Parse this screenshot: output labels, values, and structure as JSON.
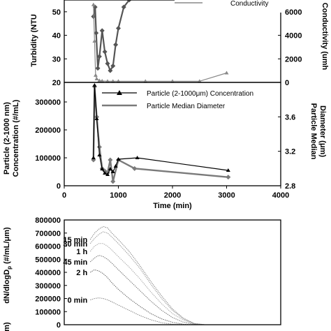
{
  "chart_data": [
    {
      "type": "line",
      "ylabel": "Turbidity (NTU",
      "y2label": "Conductivity (umh",
      "yticks": [
        "20",
        "30",
        "40",
        "50"
      ],
      "y2ticks": [
        "0",
        "2000",
        "4000",
        "6000"
      ],
      "ylim": [
        20,
        55
      ],
      "y2lim": [
        0,
        7000
      ],
      "xlim": [
        0,
        4000
      ],
      "grid": false,
      "legend_position": "top-right",
      "series": [
        {
          "name": "",
          "color": "#555555",
          "axis": "left",
          "marker": "diamond",
          "x": [
            540,
            570,
            590,
            620,
            650,
            700,
            750,
            800,
            850,
            900,
            950,
            1000,
            1100,
            1200,
            1350
          ],
          "y": [
            48,
            52,
            41,
            26,
            31,
            42,
            33,
            28,
            25,
            27,
            36,
            43,
            52,
            55,
            57
          ]
        },
        {
          "name": "Conductivity",
          "color": "#888888",
          "axis": "right",
          "marker": "triangle",
          "x": [
            540,
            560,
            580,
            600,
            650,
            700,
            800,
            900,
            1000,
            1500,
            2000,
            2500,
            3000
          ],
          "y": [
            6600,
            3500,
            600,
            300,
            150,
            120,
            100,
            100,
            100,
            100,
            100,
            100,
            800
          ]
        }
      ]
    },
    {
      "type": "line",
      "xlabel": "Time (min)",
      "ylabel": "Particle (2-1000 nm) Concentration (#/mL)",
      "y2label": "Particle Median Diameter (μm)",
      "xticks": [
        "0",
        "1000",
        "2000",
        "3000",
        "4000"
      ],
      "yticks": [
        "0",
        "100000",
        "200000",
        "300000"
      ],
      "y2ticks": [
        "2.8",
        "3.2",
        "3.6"
      ],
      "xlim": [
        0,
        4000
      ],
      "ylim": [
        0,
        370000
      ],
      "y2lim": [
        2.8,
        4.0
      ],
      "grid": false,
      "legend_position": "top-right",
      "series": [
        {
          "name": "Particle (2-1000μm) Concentration",
          "color": "#000000",
          "marker": "triangle",
          "axis": "left",
          "x": [
            540,
            560,
            600,
            650,
            700,
            750,
            800,
            850,
            900,
            950,
            1000,
            1350,
            3030
          ],
          "y": [
            100000,
            360000,
            240000,
            110000,
            60000,
            45000,
            40000,
            60000,
            50000,
            70000,
            95000,
            100000,
            55000
          ]
        },
        {
          "name": "Particle Median Diameter",
          "color": "#7a7a7a",
          "marker": "diamond",
          "axis": "right",
          "x": [
            540,
            560,
            600,
            650,
            700,
            750,
            800,
            850,
            900,
            1000,
            1300,
            3030
          ],
          "y": [
            3.1,
            3.95,
            3.6,
            3.25,
            3.0,
            2.97,
            2.95,
            3.1,
            2.85,
            3.1,
            3.0,
            2.9
          ]
        }
      ]
    },
    {
      "type": "line",
      "ylabel": "dN/dlogD",
      "ylabel_sub": "p",
      "ylabel_units": " (#/mL/μm)",
      "yticks": [
        "0",
        "100000",
        "200000",
        "300000",
        "400000",
        "500000",
        "600000",
        "700000",
        "800000"
      ],
      "ylim": [
        0,
        800000
      ],
      "bottom_left_fragment": "m)",
      "xlim": [
        0,
        1
      ],
      "grid": false,
      "legend_position": "none",
      "series": [
        {
          "name": "15 min",
          "color": "#888888",
          "x": [
            0.12,
            0.14,
            0.16,
            0.18,
            0.2,
            0.22,
            0.25,
            0.3,
            0.35,
            0.4,
            0.45,
            0.5,
            0.55,
            0.6,
            0.65
          ],
          "y": [
            650000,
            700000,
            730000,
            750000,
            740000,
            700000,
            650000,
            560000,
            450000,
            330000,
            220000,
            120000,
            50000,
            10000,
            0
          ]
        },
        {
          "name": "30 min",
          "color": "#999999",
          "x": [
            0.12,
            0.14,
            0.16,
            0.18,
            0.2,
            0.22,
            0.25,
            0.3,
            0.35,
            0.4,
            0.45,
            0.5,
            0.55,
            0.6,
            0.65
          ],
          "y": [
            620000,
            660000,
            690000,
            710000,
            700000,
            670000,
            620000,
            530000,
            430000,
            310000,
            200000,
            110000,
            45000,
            8000,
            0
          ]
        },
        {
          "name": "1 h",
          "color": "#aaaaaa",
          "x": [
            0.12,
            0.14,
            0.16,
            0.18,
            0.2,
            0.22,
            0.25,
            0.3,
            0.35,
            0.4,
            0.45,
            0.5,
            0.55,
            0.6,
            0.65
          ],
          "y": [
            560000,
            600000,
            620000,
            620000,
            600000,
            570000,
            520000,
            440000,
            350000,
            250000,
            160000,
            85000,
            35000,
            5000,
            0
          ]
        },
        {
          "name": "45 min",
          "color": "#777777",
          "x": [
            0.12,
            0.14,
            0.16,
            0.18,
            0.2,
            0.22,
            0.25,
            0.3,
            0.35,
            0.4,
            0.45,
            0.5,
            0.55,
            0.6,
            0.65
          ],
          "y": [
            480000,
            510000,
            530000,
            520000,
            500000,
            470000,
            420000,
            340000,
            260000,
            180000,
            110000,
            55000,
            20000,
            3000,
            0
          ]
        },
        {
          "name": "2 h",
          "color": "#666666",
          "x": [
            0.12,
            0.14,
            0.16,
            0.18,
            0.2,
            0.22,
            0.25,
            0.3,
            0.35,
            0.4,
            0.45,
            0.5,
            0.55,
            0.6
          ],
          "y": [
            400000,
            420000,
            410000,
            390000,
            360000,
            320000,
            270000,
            200000,
            140000,
            85000,
            45000,
            18000,
            4000,
            0
          ]
        },
        {
          "name": "0 min",
          "color": "#888888",
          "x": [
            0.12,
            0.14,
            0.16,
            0.18,
            0.2,
            0.22,
            0.25,
            0.3,
            0.35,
            0.4,
            0.45,
            0.5,
            0.55
          ],
          "y": [
            190000,
            200000,
            205000,
            200000,
            190000,
            175000,
            150000,
            110000,
            70000,
            38000,
            15000,
            4000,
            0
          ]
        }
      ]
    }
  ]
}
